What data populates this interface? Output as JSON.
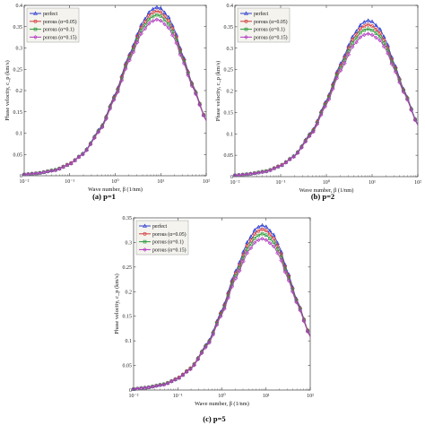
{
  "chart_data": [
    {
      "type": "line",
      "caption": "(a) p=1",
      "xlabel": "Wave number, β (1/nm)",
      "ylabel": "Phase velocity, c_p (km/s)",
      "xscale": "log",
      "xlim": [
        0.01,
        100
      ],
      "ylim": [
        0,
        0.4
      ],
      "xticks": [
        "10⁻²",
        "10⁻¹",
        "10⁰",
        "10¹",
        "10²"
      ],
      "yticks": [
        "0",
        "0.05",
        "0.1",
        "0.15",
        "0.2",
        "0.25",
        "0.3",
        "0.35",
        "0.4"
      ],
      "legend": "top-left",
      "x": [
        0.01,
        0.02,
        0.05,
        0.1,
        0.2,
        0.5,
        1,
        2,
        4,
        6,
        8,
        10,
        15,
        20,
        30,
        50,
        100
      ],
      "series": [
        {
          "name": "perfect",
          "color": "#2f3fd0",
          "values": [
            0.003,
            0.006,
            0.014,
            0.028,
            0.053,
            0.116,
            0.192,
            0.283,
            0.36,
            0.388,
            0.396,
            0.393,
            0.372,
            0.343,
            0.285,
            0.215,
            0.13
          ]
        },
        {
          "name": "porous (α=0.05)",
          "color": "#d23b3b",
          "values": [
            0.003,
            0.006,
            0.014,
            0.028,
            0.052,
            0.114,
            0.189,
            0.279,
            0.354,
            0.38,
            0.387,
            0.384,
            0.364,
            0.337,
            0.281,
            0.213,
            0.13
          ]
        },
        {
          "name": "porous (α=0.1)",
          "color": "#2e9a3a",
          "values": [
            0.003,
            0.006,
            0.014,
            0.027,
            0.052,
            0.113,
            0.186,
            0.274,
            0.347,
            0.371,
            0.378,
            0.375,
            0.356,
            0.33,
            0.277,
            0.211,
            0.129
          ]
        },
        {
          "name": "porous (α=0.15)",
          "color": "#b43cc0",
          "values": [
            0.003,
            0.006,
            0.013,
            0.027,
            0.051,
            0.111,
            0.183,
            0.269,
            0.339,
            0.361,
            0.367,
            0.364,
            0.347,
            0.322,
            0.272,
            0.208,
            0.129
          ]
        }
      ]
    },
    {
      "type": "line",
      "caption": "(b) p=2",
      "xlabel": "Wave number, β (1/nm)",
      "ylabel": "Phase velocity, c_p (km/s)",
      "xscale": "log",
      "xlim": [
        0.01,
        100
      ],
      "ylim": [
        0,
        0.4
      ],
      "xticks": [
        "10⁻²",
        "10⁻¹",
        "10⁰",
        "10¹",
        "10²"
      ],
      "yticks": [
        "0",
        "0.05",
        "0.1",
        "0.15",
        "0.2",
        "0.25",
        "0.3",
        "0.35",
        "0.4"
      ],
      "legend": "top-left",
      "x": [
        0.01,
        0.02,
        0.05,
        0.1,
        0.2,
        0.5,
        1,
        2,
        4,
        6,
        8,
        10,
        15,
        20,
        30,
        50,
        100
      ],
      "series": [
        {
          "name": "perfect",
          "color": "#2f3fd0",
          "values": [
            0.003,
            0.006,
            0.013,
            0.026,
            0.049,
            0.108,
            0.178,
            0.262,
            0.332,
            0.358,
            0.365,
            0.362,
            0.344,
            0.318,
            0.266,
            0.202,
            0.122
          ]
        },
        {
          "name": "porous (α=0.05)",
          "color": "#d23b3b",
          "values": [
            0.003,
            0.006,
            0.013,
            0.026,
            0.048,
            0.106,
            0.175,
            0.257,
            0.325,
            0.349,
            0.355,
            0.352,
            0.335,
            0.311,
            0.261,
            0.2,
            0.121
          ]
        },
        {
          "name": "porous (α=0.1)",
          "color": "#2e9a3a",
          "values": [
            0.003,
            0.006,
            0.013,
            0.025,
            0.048,
            0.104,
            0.172,
            0.252,
            0.317,
            0.34,
            0.345,
            0.342,
            0.327,
            0.304,
            0.257,
            0.198,
            0.121
          ]
        },
        {
          "name": "porous (α=0.15)",
          "color": "#b43cc0",
          "values": [
            0.003,
            0.006,
            0.012,
            0.025,
            0.047,
            0.102,
            0.168,
            0.246,
            0.308,
            0.329,
            0.334,
            0.331,
            0.318,
            0.297,
            0.252,
            0.195,
            0.12
          ]
        }
      ]
    },
    {
      "type": "line",
      "caption": "(c) p=5",
      "xlabel": "Wave number, β (1/nm)",
      "ylabel": "Phase velocity, c_p (km/s)",
      "xscale": "log",
      "xlim": [
        0.01,
        100
      ],
      "ylim": [
        0,
        0.35
      ],
      "xticks": [
        "10⁻²",
        "10⁻¹",
        "10⁰",
        "10¹",
        "10²"
      ],
      "yticks": [
        "0",
        "0.05",
        "0.1",
        "0.15",
        "0.2",
        "0.25",
        "0.3",
        "0.35"
      ],
      "legend": "top-left",
      "x": [
        0.01,
        0.02,
        0.05,
        0.1,
        0.2,
        0.5,
        1,
        2,
        4,
        6,
        8,
        10,
        15,
        20,
        30,
        50,
        100
      ],
      "series": [
        {
          "name": "perfect",
          "color": "#2f3fd0",
          "values": [
            0.002,
            0.005,
            0.012,
            0.024,
            0.045,
            0.099,
            0.163,
            0.24,
            0.305,
            0.329,
            0.335,
            0.332,
            0.315,
            0.291,
            0.243,
            0.183,
            0.11
          ]
        },
        {
          "name": "porous (α=0.05)",
          "color": "#d23b3b",
          "values": [
            0.002,
            0.005,
            0.012,
            0.024,
            0.045,
            0.097,
            0.16,
            0.235,
            0.298,
            0.321,
            0.327,
            0.324,
            0.308,
            0.285,
            0.239,
            0.181,
            0.11
          ]
        },
        {
          "name": "porous (α=0.1)",
          "color": "#2e9a3a",
          "values": [
            0.002,
            0.005,
            0.012,
            0.023,
            0.044,
            0.096,
            0.157,
            0.23,
            0.291,
            0.312,
            0.318,
            0.315,
            0.3,
            0.279,
            0.235,
            0.179,
            0.109
          ]
        },
        {
          "name": "porous (α=0.15)",
          "color": "#b43cc0",
          "values": [
            0.002,
            0.005,
            0.011,
            0.023,
            0.043,
            0.094,
            0.154,
            0.225,
            0.283,
            0.303,
            0.308,
            0.305,
            0.292,
            0.272,
            0.23,
            0.176,
            0.108
          ]
        }
      ]
    }
  ]
}
